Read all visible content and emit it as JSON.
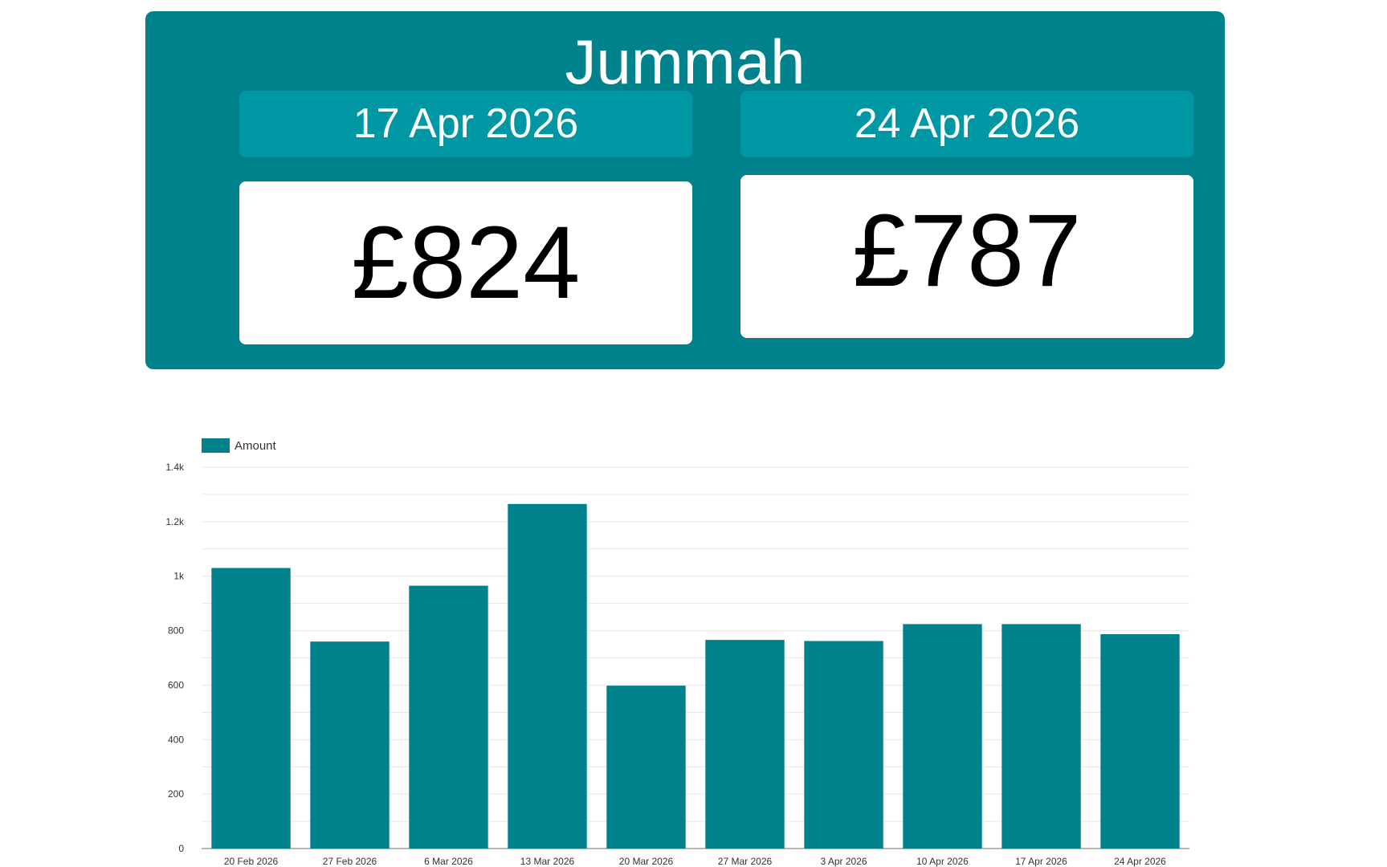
{
  "header": {
    "title": "Jummah",
    "cards": [
      {
        "date": "17 Apr 2026",
        "amount": "£824"
      },
      {
        "date": "24 Apr 2026",
        "amount": "£787"
      }
    ]
  },
  "colors": {
    "panel": "#00828c",
    "date_box": "#0097a5",
    "bar": "#00828c",
    "grid": "#e6e6e6"
  },
  "chart_data": {
    "type": "bar",
    "legend": "Amount",
    "legend_position": "top-left",
    "categories": [
      "20 Feb 2026",
      "27 Feb 2026",
      "6 Mar 2026",
      "13 Mar 2026",
      "20 Mar 2026",
      "27 Mar 2026",
      "3 Apr 2026",
      "10 Apr 2026",
      "17 Apr 2026",
      "24 Apr 2026"
    ],
    "series": [
      {
        "name": "Amount",
        "values": [
          1030,
          760,
          965,
          1265,
          598,
          766,
          762,
          824,
          824,
          787
        ]
      }
    ],
    "ylim": [
      0,
      1400
    ],
    "yticks": [
      0,
      200,
      400,
      600,
      800,
      1000,
      1200,
      1400
    ],
    "ytick_labels": [
      "0",
      "200",
      "400",
      "600",
      "800",
      "1k",
      "1.2k",
      "1.4k"
    ],
    "grid": true
  }
}
